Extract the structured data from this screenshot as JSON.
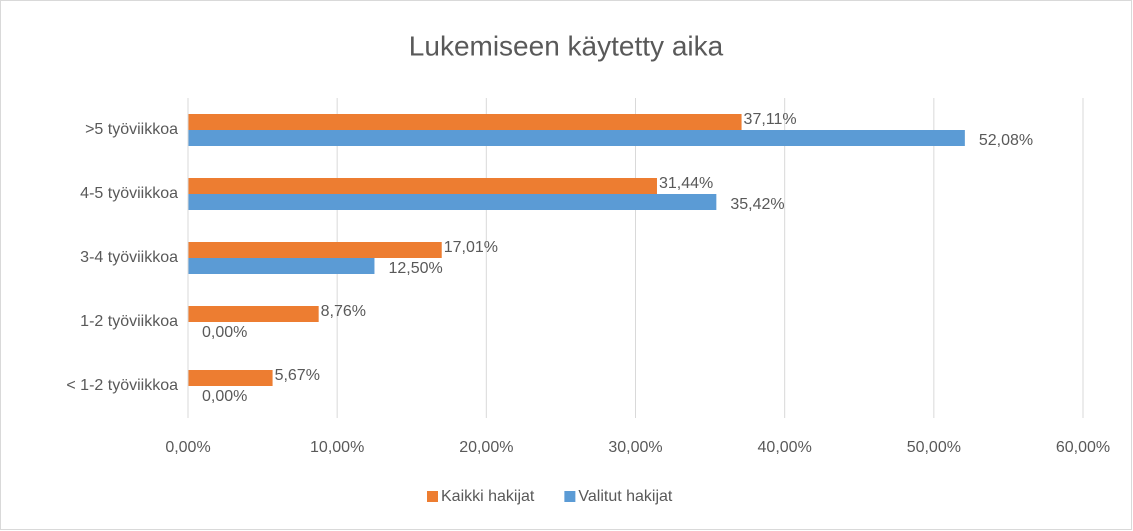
{
  "chart_data": {
    "type": "bar",
    "orientation": "horizontal",
    "title": "Lukemiseen käytetty aika",
    "categories": [
      ">5 työviikkoa",
      "4-5 työviikkoa",
      "3-4 työviikkoa",
      "1-2 työviikkoa",
      "< 1-2 työviikkoa"
    ],
    "series": [
      {
        "name": "Kaikki hakijat",
        "color": "#ed7d31",
        "values": [
          37.11,
          31.44,
          17.01,
          8.76,
          5.67
        ],
        "value_labels": [
          "37,11%",
          "31,44%",
          "17,01%",
          "8,76%",
          "5,67%"
        ]
      },
      {
        "name": "Valitut hakijat",
        "color": "#5b9bd5",
        "values": [
          52.08,
          35.42,
          12.5,
          0,
          0
        ],
        "value_labels": [
          "52,08%",
          "35,42%",
          "12,50%",
          "0,00%",
          "0,00%"
        ]
      }
    ],
    "xlim": [
      0,
      60
    ],
    "xticks": [
      {
        "value": 0,
        "label": "0,00%"
      },
      {
        "value": 10,
        "label": "10,00%"
      },
      {
        "value": 20,
        "label": "20,00%"
      },
      {
        "value": 30,
        "label": "30,00%"
      },
      {
        "value": 40,
        "label": "40,00%"
      },
      {
        "value": 50,
        "label": "50,00%"
      },
      {
        "value": 60,
        "label": "60,00%"
      }
    ],
    "grid": true,
    "legend": "bottom"
  }
}
